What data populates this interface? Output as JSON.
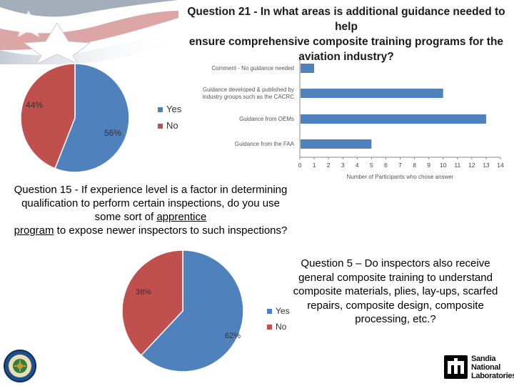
{
  "slide": {
    "q21_title_lines": [
      "Question 21 - In what areas is additional guidance needed to help",
      "ensure comprehensive composite training programs for the",
      "aviation industry?"
    ],
    "q15_before": "Question 15 - If experience level is a factor in determining qualification to perform certain inspections, do you use some sort of ",
    "q15_underlined_1": "apprentice",
    "q15_underlined_2": "program",
    "q15_after": " to expose newer inspectors to such inspections?",
    "q5_text": "Question 5 – Do inspectors also receive general composite training to understand composite materials, plies, lay-ups, scarfed repairs, composite design, composite processing, etc.?",
    "sandia_lines": [
      "Sandia",
      "National",
      "Laboratories"
    ]
  },
  "colors": {
    "yes": "#4f81bd",
    "no": "#c0504d",
    "bar": "#4f81bd"
  },
  "chart_data": [
    {
      "type": "pie",
      "labels": [
        "Yes",
        "No"
      ],
      "values": [
        56,
        44
      ],
      "data_labels": [
        "56%",
        "44%"
      ],
      "legend": "right"
    },
    {
      "type": "bar",
      "orientation": "horizontal",
      "categories": [
        [
          "Comment - No guidance needed"
        ],
        [
          "Guidance developed & published by",
          "industry groups such as the CACRC"
        ],
        [
          "Guidance from OEMs"
        ],
        [
          "Guidance from the FAA"
        ]
      ],
      "values": [
        1,
        10,
        13,
        5
      ],
      "xlabel": "Number of Participants who chose answer",
      "xlim": [
        0,
        14
      ],
      "xticks": [
        0,
        1,
        2,
        3,
        4,
        5,
        6,
        7,
        8,
        9,
        10,
        11,
        12,
        13,
        14
      ],
      "grid": false
    },
    {
      "type": "pie",
      "labels": [
        "Yes",
        "No"
      ],
      "values": [
        62,
        38
      ],
      "data_labels": [
        "62%",
        "38%"
      ],
      "legend": "right"
    }
  ]
}
